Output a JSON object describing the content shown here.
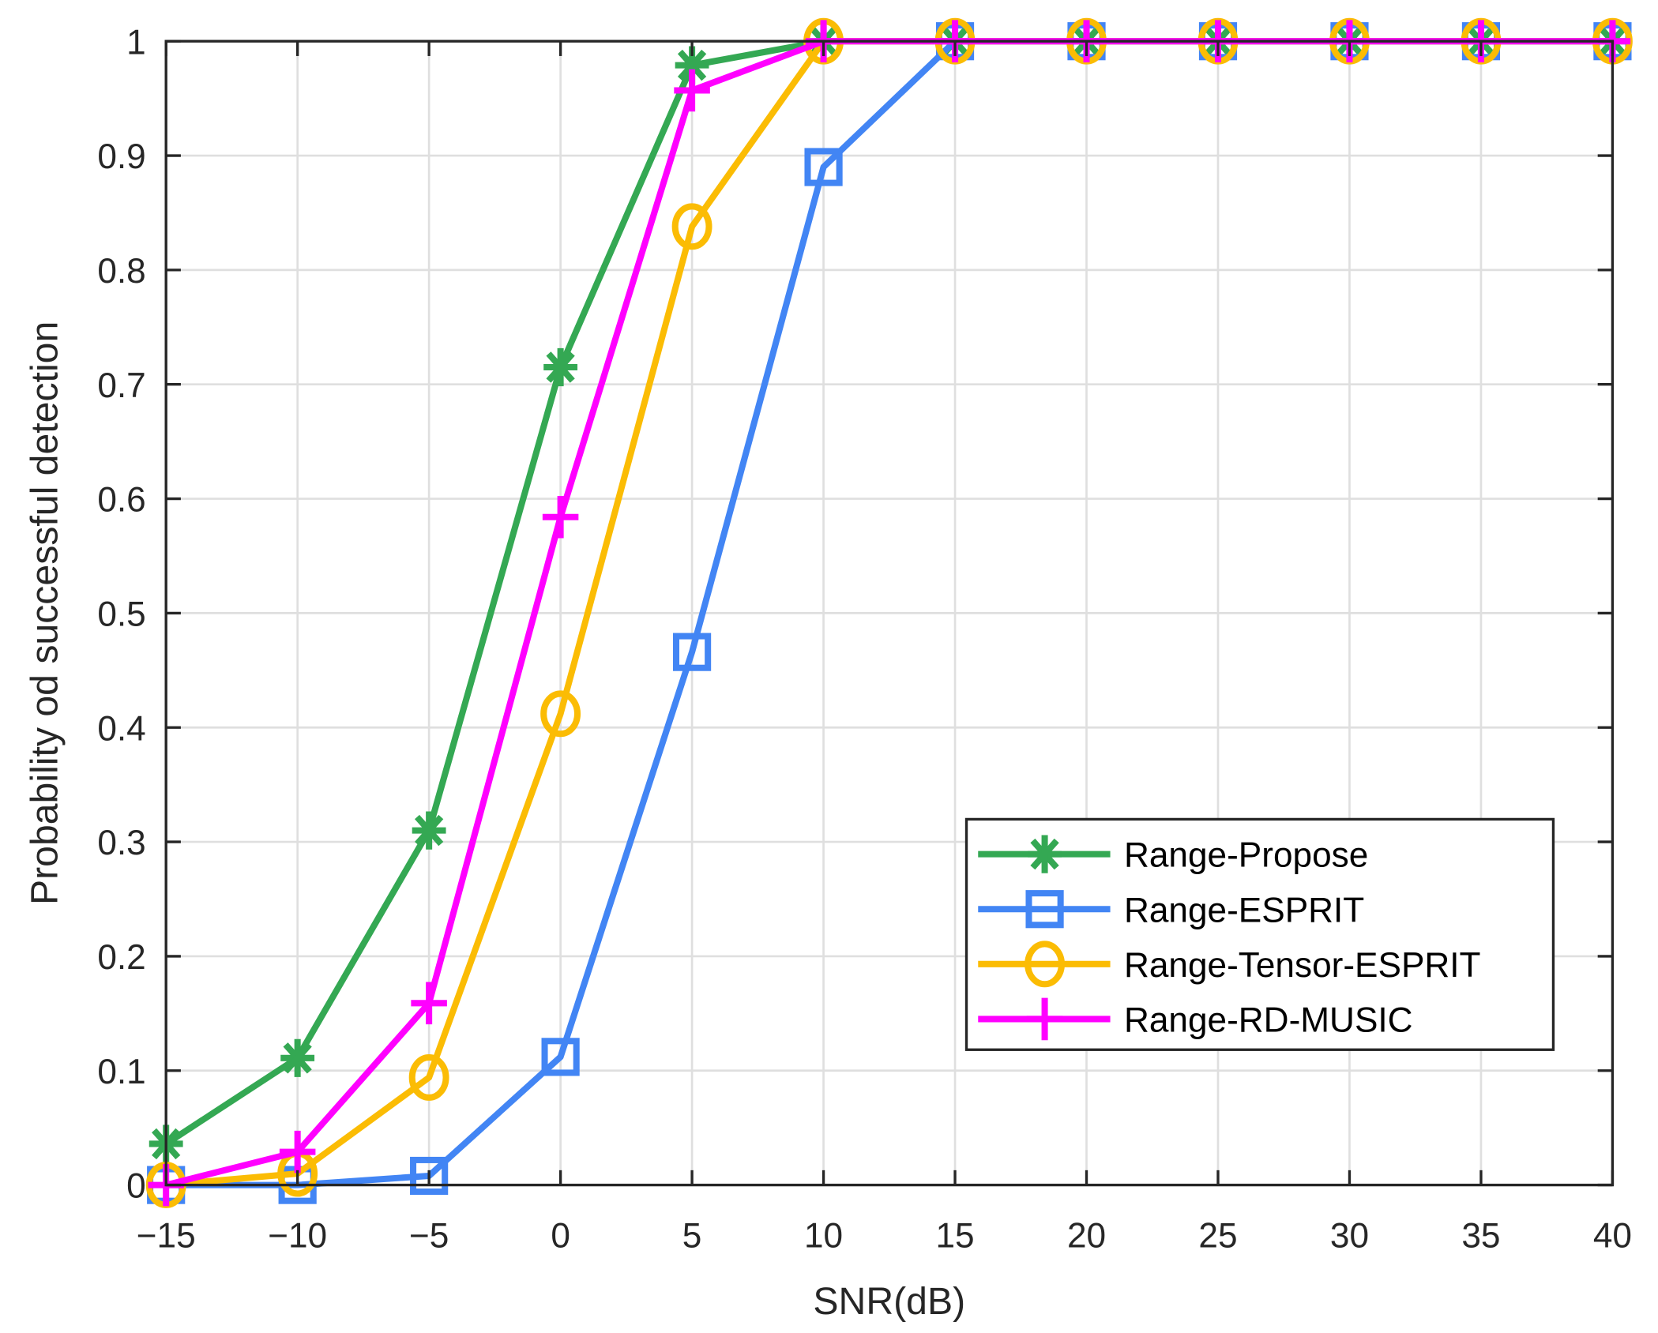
{
  "chart_data": {
    "type": "line",
    "title": "",
    "xlabel": "SNR(dB)",
    "ylabel": "Probability od successful detection",
    "x": [
      -15,
      -10,
      -5,
      0,
      5,
      10,
      15,
      20,
      25,
      30,
      35,
      40
    ],
    "xlim": [
      -15,
      40
    ],
    "ylim": [
      0,
      1
    ],
    "xticks": [
      "−15",
      "−10",
      "−5",
      "0",
      "5",
      "10",
      "15",
      "20",
      "25",
      "30",
      "35",
      "40"
    ],
    "yticks": [
      "0",
      "0.1",
      "0.2",
      "0.3",
      "0.4",
      "0.5",
      "0.6",
      "0.7",
      "0.8",
      "0.9",
      "1"
    ],
    "grid": true,
    "legend_position": "lower right",
    "series": [
      {
        "name": "Range-Propose",
        "color": "#34A853",
        "marker": "asterisk",
        "values": [
          0.036,
          0.111,
          0.31,
          0.715,
          0.979,
          1,
          1,
          1,
          1,
          1,
          1,
          1
        ]
      },
      {
        "name": "Range-ESPRIT",
        "color": "#4285F4",
        "marker": "square",
        "values": [
          0,
          0,
          0.008,
          0.112,
          0.466,
          0.89,
          1,
          1,
          1,
          1,
          1,
          1
        ]
      },
      {
        "name": "Range-Tensor-ESPRIT",
        "color": "#FBBC04",
        "marker": "circle",
        "values": [
          0,
          0.01,
          0.094,
          0.412,
          0.838,
          1,
          1,
          1,
          1,
          1,
          1,
          1
        ]
      },
      {
        "name": "Range-RD-MUSIC",
        "color": "#FF00FF",
        "marker": "plus",
        "values": [
          0,
          0.029,
          0.159,
          0.584,
          0.957,
          1,
          1,
          1,
          1,
          1,
          1,
          1
        ]
      }
    ]
  }
}
